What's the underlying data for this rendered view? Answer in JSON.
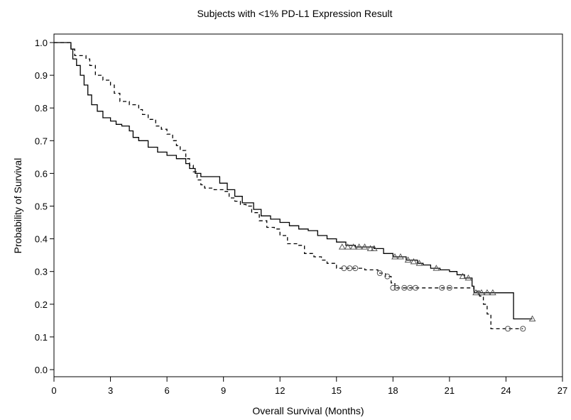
{
  "chart_data": {
    "type": "line",
    "title": "Subjects with <1% PD-L1 Expression Result",
    "xlabel": "Overall Survival (Months)",
    "ylabel": "Probability of Survival",
    "xlim": [
      0,
      27
    ],
    "ylim": [
      0,
      1.0
    ],
    "x_ticks": [
      "0",
      "3",
      "6",
      "9",
      "12",
      "15",
      "18",
      "21",
      "24",
      "27"
    ],
    "y_ticks": [
      "0.0",
      "0.1",
      "0.2",
      "0.3",
      "0.4",
      "0.5",
      "0.6",
      "0.7",
      "0.8",
      "0.9",
      "1.0"
    ],
    "grid": false,
    "legend": "none",
    "series": [
      {
        "line_style": "solid",
        "color": "#000000",
        "points": [
          [
            0,
            1.0
          ],
          [
            0.8,
            1.0
          ],
          [
            0.9,
            0.98
          ],
          [
            1.0,
            0.95
          ],
          [
            1.2,
            0.93
          ],
          [
            1.4,
            0.9
          ],
          [
            1.6,
            0.87
          ],
          [
            1.8,
            0.84
          ],
          [
            2.0,
            0.81
          ],
          [
            2.3,
            0.79
          ],
          [
            2.6,
            0.77
          ],
          [
            3.0,
            0.76
          ],
          [
            3.3,
            0.75
          ],
          [
            3.6,
            0.745
          ],
          [
            4.0,
            0.73
          ],
          [
            4.2,
            0.71
          ],
          [
            4.5,
            0.7
          ],
          [
            5.0,
            0.68
          ],
          [
            5.5,
            0.665
          ],
          [
            6.0,
            0.655
          ],
          [
            6.5,
            0.645
          ],
          [
            7.0,
            0.63
          ],
          [
            7.2,
            0.615
          ],
          [
            7.5,
            0.6
          ],
          [
            7.8,
            0.59
          ],
          [
            8.5,
            0.59
          ],
          [
            8.8,
            0.57
          ],
          [
            9.2,
            0.55
          ],
          [
            9.6,
            0.53
          ],
          [
            10.0,
            0.51
          ],
          [
            10.6,
            0.49
          ],
          [
            11.0,
            0.47
          ],
          [
            11.5,
            0.46
          ],
          [
            12.0,
            0.45
          ],
          [
            12.5,
            0.44
          ],
          [
            13.0,
            0.43
          ],
          [
            13.5,
            0.425
          ],
          [
            14.0,
            0.41
          ],
          [
            14.5,
            0.4
          ],
          [
            15.0,
            0.39
          ],
          [
            15.5,
            0.38
          ],
          [
            16.0,
            0.375
          ],
          [
            17.0,
            0.37
          ],
          [
            17.5,
            0.355
          ],
          [
            18.0,
            0.345
          ],
          [
            18.7,
            0.335
          ],
          [
            19.3,
            0.325
          ],
          [
            19.6,
            0.32
          ],
          [
            20.0,
            0.31
          ],
          [
            20.5,
            0.305
          ],
          [
            21.0,
            0.3
          ],
          [
            21.4,
            0.29
          ],
          [
            21.8,
            0.28
          ],
          [
            22.2,
            0.255
          ],
          [
            22.3,
            0.235
          ],
          [
            24.3,
            0.235
          ],
          [
            24.4,
            0.155
          ],
          [
            25.4,
            0.155
          ]
        ],
        "censored": [
          [
            15.3,
            0.375
          ],
          [
            15.6,
            0.375
          ],
          [
            15.9,
            0.375
          ],
          [
            16.2,
            0.375
          ],
          [
            16.5,
            0.375
          ],
          [
            16.8,
            0.37
          ],
          [
            17.0,
            0.37
          ],
          [
            18.1,
            0.345
          ],
          [
            18.4,
            0.345
          ],
          [
            18.8,
            0.335
          ],
          [
            19.1,
            0.33
          ],
          [
            19.4,
            0.325
          ],
          [
            20.3,
            0.31
          ],
          [
            21.7,
            0.285
          ],
          [
            22.0,
            0.28
          ],
          [
            22.4,
            0.235
          ],
          [
            22.7,
            0.235
          ],
          [
            23.0,
            0.235
          ],
          [
            23.3,
            0.235
          ],
          [
            25.4,
            0.155
          ]
        ]
      },
      {
        "line_style": "dashed",
        "color": "#000000",
        "points": [
          [
            0,
            1.0
          ],
          [
            0.7,
            1.0
          ],
          [
            0.9,
            0.98
          ],
          [
            1.1,
            0.96
          ],
          [
            1.7,
            0.95
          ],
          [
            1.9,
            0.93
          ],
          [
            2.2,
            0.9
          ],
          [
            2.6,
            0.885
          ],
          [
            3.0,
            0.87
          ],
          [
            3.2,
            0.845
          ],
          [
            3.5,
            0.82
          ],
          [
            4.0,
            0.81
          ],
          [
            4.5,
            0.795
          ],
          [
            4.7,
            0.78
          ],
          [
            5.0,
            0.765
          ],
          [
            5.4,
            0.745
          ],
          [
            5.7,
            0.735
          ],
          [
            6.0,
            0.72
          ],
          [
            6.3,
            0.7
          ],
          [
            6.5,
            0.685
          ],
          [
            6.7,
            0.67
          ],
          [
            7.0,
            0.645
          ],
          [
            7.2,
            0.625
          ],
          [
            7.4,
            0.605
          ],
          [
            7.6,
            0.58
          ],
          [
            7.8,
            0.565
          ],
          [
            8.0,
            0.555
          ],
          [
            8.5,
            0.55
          ],
          [
            9.0,
            0.545
          ],
          [
            9.3,
            0.525
          ],
          [
            9.6,
            0.515
          ],
          [
            9.9,
            0.505
          ],
          [
            10.2,
            0.5
          ],
          [
            10.5,
            0.48
          ],
          [
            10.9,
            0.455
          ],
          [
            11.3,
            0.435
          ],
          [
            11.7,
            0.43
          ],
          [
            12.0,
            0.41
          ],
          [
            12.4,
            0.385
          ],
          [
            13.0,
            0.38
          ],
          [
            13.3,
            0.355
          ],
          [
            13.8,
            0.345
          ],
          [
            14.2,
            0.335
          ],
          [
            14.5,
            0.325
          ],
          [
            15.0,
            0.31
          ],
          [
            16.3,
            0.31
          ],
          [
            16.5,
            0.305
          ],
          [
            17.2,
            0.295
          ],
          [
            17.6,
            0.285
          ],
          [
            17.9,
            0.265
          ],
          [
            18.1,
            0.25
          ],
          [
            19.5,
            0.25
          ],
          [
            20.3,
            0.25
          ],
          [
            21.7,
            0.25
          ],
          [
            22.3,
            0.24
          ],
          [
            22.6,
            0.225
          ],
          [
            22.8,
            0.2
          ],
          [
            23.0,
            0.17
          ],
          [
            23.2,
            0.125
          ],
          [
            24.9,
            0.125
          ]
        ],
        "censored": [
          [
            15.4,
            0.31
          ],
          [
            15.7,
            0.31
          ],
          [
            16.0,
            0.31
          ],
          [
            17.3,
            0.295
          ],
          [
            17.7,
            0.285
          ],
          [
            18.0,
            0.25
          ],
          [
            18.2,
            0.25
          ],
          [
            18.6,
            0.25
          ],
          [
            18.9,
            0.25
          ],
          [
            19.2,
            0.25
          ],
          [
            20.6,
            0.25
          ],
          [
            21.0,
            0.25
          ],
          [
            24.1,
            0.125
          ],
          [
            24.9,
            0.125
          ]
        ]
      }
    ]
  }
}
